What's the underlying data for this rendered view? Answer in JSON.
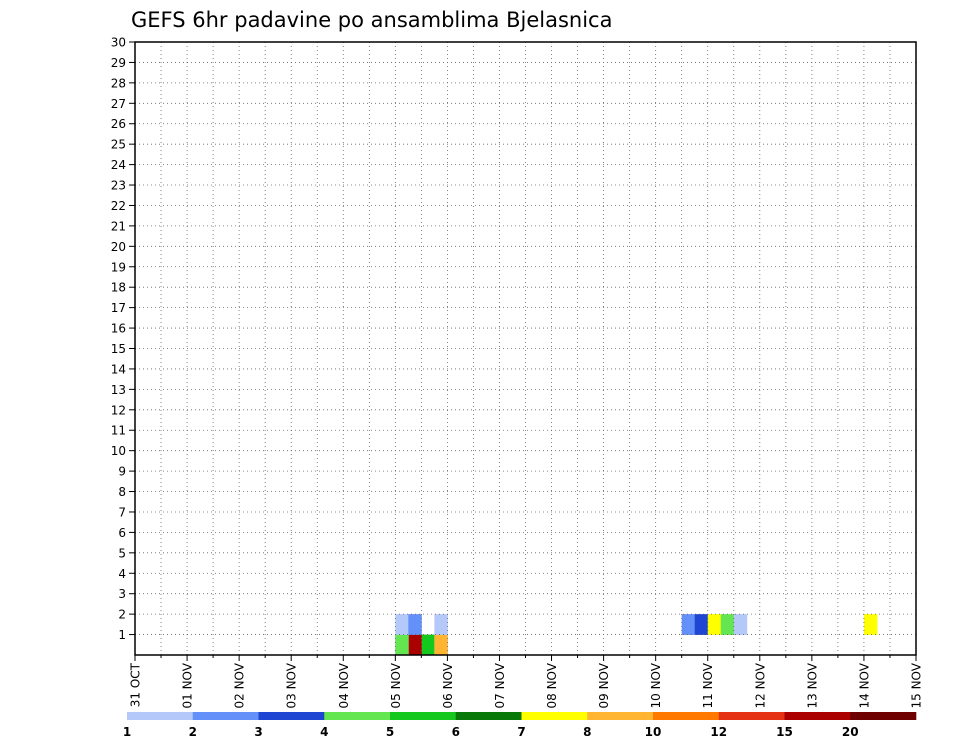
{
  "chart_data": {
    "type": "heatmap",
    "title": "GEFS 6hr padavine po ansamblima Bjelasnica",
    "xlabel": "",
    "ylabel": "",
    "x_tick_labels": [
      "31 OCT",
      "01 NOV",
      "02 NOV",
      "03 NOV",
      "04 NOV",
      "05 NOV",
      "06 NOV",
      "07 NOV",
      "08 NOV",
      "09 NOV",
      "10 NOV",
      "11 NOV",
      "12 NOV",
      "13 NOV",
      "14 NOV",
      "15 NOV"
    ],
    "y_tick_labels": [
      "1",
      "2",
      "3",
      "4",
      "5",
      "6",
      "7",
      "8",
      "9",
      "10",
      "11",
      "12",
      "13",
      "14",
      "15",
      "16",
      "17",
      "18",
      "19",
      "20",
      "21",
      "22",
      "23",
      "24",
      "25",
      "26",
      "27",
      "28",
      "29",
      "30"
    ],
    "xlim_days": [
      0,
      15
    ],
    "ylim": [
      0,
      30
    ],
    "step_hours": 6,
    "grid": true,
    "colorbar": {
      "placement": "bottom",
      "labels": [
        "1",
        "2",
        "3",
        "4",
        "5",
        "6",
        "7",
        "8",
        "10",
        "12",
        "15",
        "20"
      ],
      "colors": [
        "#b4c8fa",
        "#6490fa",
        "#1e46d2",
        "#64e650",
        "#14c81e",
        "#087808",
        "#ffff00",
        "#ffb432",
        "#ff7800",
        "#e63214",
        "#aa0000",
        "#6e0000"
      ]
    },
    "cells": [
      [
        1,
        0,
        5,
        "#6490fa"
      ],
      [
        1,
        0,
        5.25,
        "#e63214"
      ],
      [
        1,
        0,
        5.5,
        "#14c81e"
      ],
      [
        1,
        0,
        5.75,
        "#b4c8fa"
      ],
      [
        1,
        0,
        5,
        "#b4c8fa"
      ],
      [
        1,
        0,
        5.25,
        "#aa0000"
      ],
      [
        1,
        1,
        5.0,
        "#64e650"
      ],
      [
        1,
        1,
        5.75,
        "#ffb432"
      ],
      [
        2,
        1,
        5.0,
        "#b4c8fa"
      ],
      [
        2,
        1,
        5.25,
        "#6490fa"
      ],
      [
        2,
        1,
        5.75,
        "#b4c8fa"
      ],
      [
        2,
        1,
        10.5,
        "#6490fa"
      ],
      [
        2,
        1,
        10.75,
        "#1e46d2"
      ],
      [
        2,
        1,
        11.0,
        "#ffff00"
      ],
      [
        2,
        1,
        11.25,
        "#64e650"
      ],
      [
        2,
        1,
        11.5,
        "#b4c8fa"
      ],
      [
        2,
        1,
        14.0,
        "#ffff00"
      ]
    ]
  }
}
